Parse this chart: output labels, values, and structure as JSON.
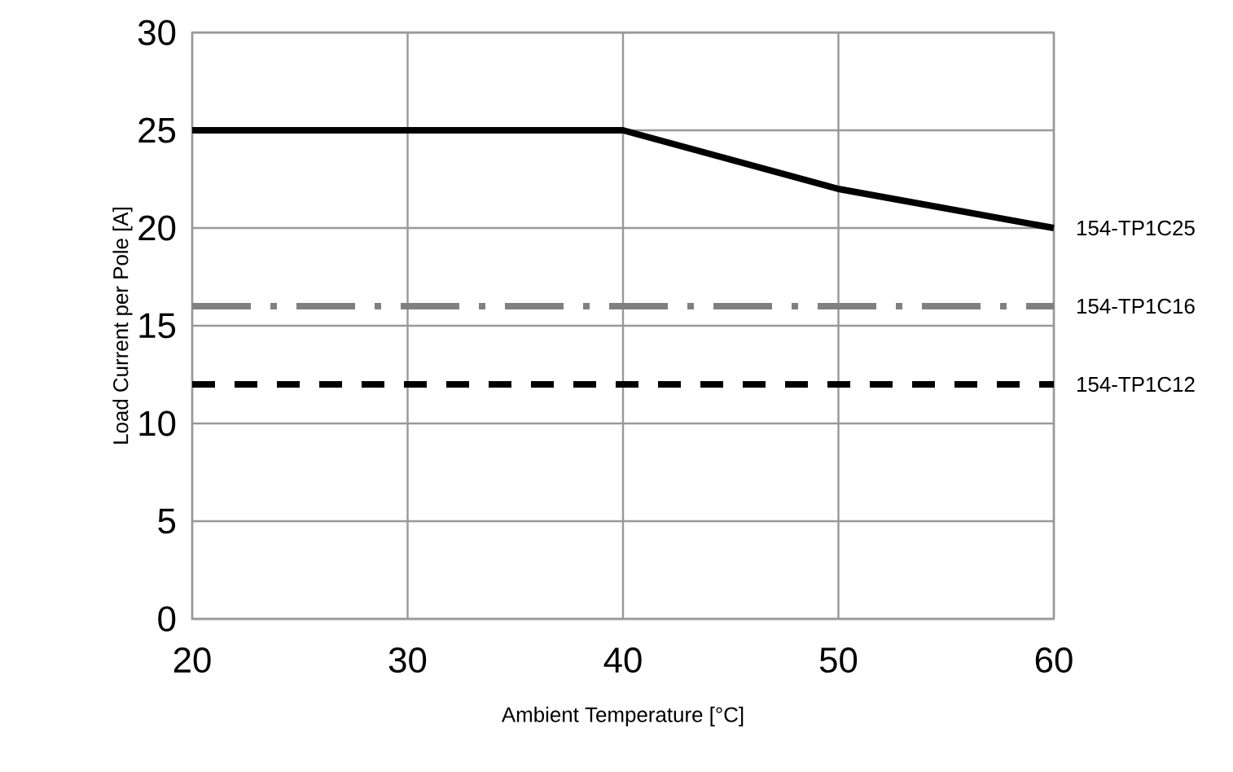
{
  "chart_data": {
    "type": "line",
    "xlabel": "Ambient Temperature [°C]",
    "ylabel": "Load Current per Pole [A]",
    "x": [
      20,
      30,
      40,
      50,
      60
    ],
    "series": [
      {
        "name": "154-TP1C25",
        "color": "#000000",
        "line_style": "solid",
        "values": [
          25,
          25,
          25,
          22,
          20
        ]
      },
      {
        "name": "154-TP1C16",
        "color": "#808080",
        "line_style": "dashdot",
        "values": [
          16,
          16,
          16,
          16,
          16
        ]
      },
      {
        "name": "154-TP1C12",
        "color": "#000000",
        "line_style": "dashed",
        "values": [
          12,
          12,
          12,
          12,
          12
        ]
      }
    ],
    "xlim": [
      20,
      60
    ],
    "ylim": [
      0,
      30
    ],
    "xticks": [
      20,
      30,
      40,
      50,
      60
    ],
    "yticks": [
      0,
      5,
      10,
      15,
      20,
      25,
      30
    ],
    "grid": true
  }
}
